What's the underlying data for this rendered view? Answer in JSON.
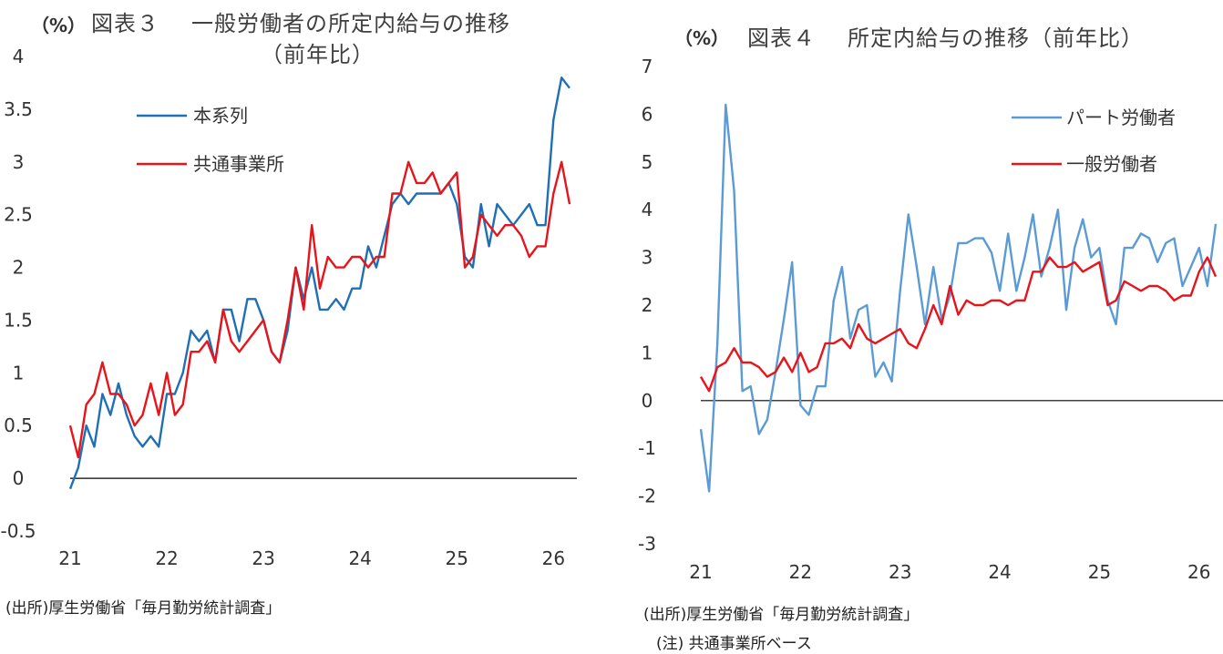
{
  "chart_data": [
    {
      "type": "line",
      "figure_label": "図表３",
      "title": "一般労働者の所定内給与の推移",
      "subtitle": "（前年比）",
      "unit_label": "（%）",
      "ylim": [
        -0.5,
        4
      ],
      "yticks": [
        "4",
        "3.5",
        "3",
        "2.5",
        "2",
        "1.5",
        "1",
        "0.5",
        "0",
        "-0.5"
      ],
      "ytick_values": [
        4,
        3.5,
        3,
        2.5,
        2,
        1.5,
        1,
        0.5,
        0,
        -0.5
      ],
      "xticks": [
        "21",
        "22",
        "23",
        "24",
        "25",
        "26"
      ],
      "x_start": 21,
      "x_step_months": 1,
      "legend_position": "top-left",
      "zero_line": true,
      "series": [
        {
          "name": "本系列",
          "color": "#1f6fb5",
          "values": [
            -0.1,
            0.1,
            0.5,
            0.3,
            0.8,
            0.6,
            0.9,
            0.6,
            0.4,
            0.3,
            0.4,
            0.3,
            0.8,
            0.8,
            1.0,
            1.4,
            1.3,
            1.4,
            1.1,
            1.6,
            1.6,
            1.3,
            1.7,
            1.7,
            1.5,
            1.2,
            1.1,
            1.4,
            2.0,
            1.7,
            2.0,
            1.6,
            1.6,
            1.7,
            1.6,
            1.8,
            1.8,
            2.2,
            2.0,
            2.3,
            2.6,
            2.7,
            2.6,
            2.7,
            2.7,
            2.7,
            2.7,
            2.8,
            2.6,
            2.1,
            2.0,
            2.6,
            2.2,
            2.6,
            2.5,
            2.4,
            2.5,
            2.6,
            2.4,
            2.4,
            3.4,
            3.8,
            3.7
          ]
        },
        {
          "name": "共通事業所",
          "color": "#e8141b",
          "values": [
            0.5,
            0.2,
            0.7,
            0.8,
            1.1,
            0.8,
            0.8,
            0.7,
            0.5,
            0.6,
            0.9,
            0.6,
            1.0,
            0.6,
            0.7,
            1.2,
            1.2,
            1.3,
            1.1,
            1.6,
            1.3,
            1.2,
            1.3,
            1.4,
            1.5,
            1.2,
            1.1,
            1.5,
            2.0,
            1.6,
            2.4,
            1.8,
            2.1,
            2.0,
            2.0,
            2.1,
            2.1,
            2.0,
            2.1,
            2.1,
            2.7,
            2.7,
            3.0,
            2.8,
            2.8,
            2.9,
            2.7,
            2.8,
            2.9,
            2.0,
            2.1,
            2.5,
            2.4,
            2.3,
            2.4,
            2.4,
            2.3,
            2.1,
            2.2,
            2.2,
            2.7,
            3.0,
            2.6
          ]
        }
      ],
      "source": "(出所)厚生労働省「毎月勤労統計調査」"
    },
    {
      "type": "line",
      "figure_label": "図表４",
      "title": "所定内給与の推移（前年比）",
      "unit_label": "（%）",
      "ylim": [
        -3,
        7
      ],
      "yticks": [
        "7",
        "6",
        "5",
        "4",
        "3",
        "2",
        "1",
        "0",
        "-1",
        "-2",
        "-3"
      ],
      "ytick_values": [
        7,
        6,
        5,
        4,
        3,
        2,
        1,
        0,
        -1,
        -2,
        -3
      ],
      "xticks": [
        "21",
        "22",
        "23",
        "24",
        "25",
        "26"
      ],
      "x_start": 21,
      "x_step_months": 1,
      "legend_position": "top-right",
      "zero_line": true,
      "series": [
        {
          "name": "パート労働者",
          "color": "#5b9bd5",
          "values": [
            -0.6,
            -1.9,
            1.2,
            6.2,
            4.4,
            0.2,
            0.3,
            -0.7,
            -0.4,
            0.6,
            1.7,
            2.9,
            -0.1,
            -0.3,
            0.3,
            0.3,
            2.1,
            2.8,
            1.3,
            1.9,
            2.0,
            0.5,
            0.8,
            0.4,
            2.3,
            3.9,
            2.8,
            1.6,
            2.8,
            1.7,
            2.2,
            3.3,
            3.3,
            3.4,
            3.4,
            3.1,
            2.3,
            3.5,
            2.3,
            3.0,
            3.9,
            2.6,
            3.2,
            4.0,
            1.9,
            3.2,
            3.8,
            3.0,
            3.2,
            2.1,
            1.6,
            3.2,
            3.2,
            3.5,
            3.4,
            2.9,
            3.3,
            3.4,
            2.4,
            2.8,
            3.2,
            2.4,
            3.7
          ]
        },
        {
          "name": "一般労働者",
          "color": "#e8141b",
          "values": [
            0.5,
            0.2,
            0.7,
            0.8,
            1.1,
            0.8,
            0.8,
            0.7,
            0.5,
            0.6,
            0.9,
            0.6,
            1.0,
            0.6,
            0.7,
            1.2,
            1.2,
            1.3,
            1.1,
            1.6,
            1.3,
            1.2,
            1.3,
            1.4,
            1.5,
            1.2,
            1.1,
            1.5,
            2.0,
            1.6,
            2.4,
            1.8,
            2.1,
            2.0,
            2.0,
            2.1,
            2.1,
            2.0,
            2.1,
            2.1,
            2.7,
            2.7,
            3.0,
            2.8,
            2.8,
            2.9,
            2.7,
            2.8,
            2.9,
            2.0,
            2.1,
            2.5,
            2.4,
            2.3,
            2.4,
            2.4,
            2.3,
            2.1,
            2.2,
            2.2,
            2.7,
            3.0,
            2.6
          ]
        }
      ],
      "source": "(出所)厚生労働省「毎月勤労統計調査」",
      "note": "(注) 共通事業所ベース"
    }
  ]
}
